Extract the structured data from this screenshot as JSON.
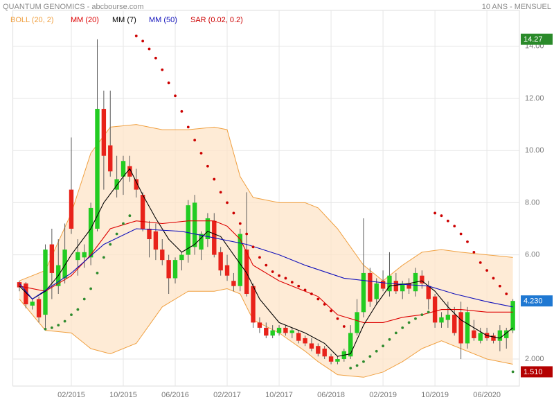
{
  "chart_data": {
    "type": "candlestick",
    "title": "QUANTUM GENOMICS - abcbourse.com",
    "subtitle": "10 ANS - MENSUEL",
    "xlim": [
      "05/2014",
      "11/2020"
    ],
    "xticks": [
      "02/2015",
      "10/2015",
      "06/2016",
      "02/2017",
      "10/2017",
      "06/2018",
      "02/2019",
      "10/2019",
      "06/2020"
    ],
    "ylim": [
      0.963,
      15.378
    ],
    "yticks": [
      {
        "value": 2,
        "label": "2.000"
      },
      {
        "value": 6,
        "label": "6.00"
      },
      {
        "value": 8,
        "label": "8.00"
      },
      {
        "value": 10,
        "label": "10.00"
      },
      {
        "value": 12,
        "label": "12.00"
      },
      {
        "value": 14,
        "label": "14.00"
      }
    ],
    "grid": true,
    "up_color": "#22cc22",
    "down_color": "#e8221a",
    "candles": {
      "x": [
        "06/2014",
        "07/2014",
        "08/2014",
        "09/2014",
        "10/2014",
        "11/2014",
        "12/2014",
        "01/2015",
        "02/2015",
        "03/2015",
        "04/2015",
        "05/2015",
        "06/2015",
        "07/2015",
        "08/2015",
        "09/2015",
        "10/2015",
        "11/2015",
        "12/2015",
        "01/2016",
        "02/2016",
        "03/2016",
        "04/2016",
        "05/2016",
        "06/2016",
        "07/2016",
        "08/2016",
        "09/2016",
        "10/2016",
        "11/2016",
        "12/2016",
        "01/2017",
        "02/2017",
        "03/2017",
        "04/2017",
        "05/2017",
        "06/2017",
        "07/2017",
        "08/2017",
        "09/2017",
        "10/2017",
        "11/2017",
        "12/2017",
        "01/2018",
        "02/2018",
        "03/2018",
        "04/2018",
        "05/2018",
        "06/2018",
        "07/2018",
        "08/2018",
        "09/2018",
        "10/2018",
        "11/2018",
        "12/2018",
        "01/2019",
        "02/2019",
        "03/2019",
        "04/2019",
        "05/2019",
        "06/2019",
        "07/2019",
        "08/2019",
        "09/2019",
        "10/2019",
        "11/2019",
        "12/2019",
        "01/2020",
        "02/2020",
        "03/2020",
        "04/2020",
        "05/2020",
        "06/2020",
        "07/2020",
        "08/2020",
        "09/2020",
        "10/2020"
      ],
      "open": [
        4.95,
        4.9,
        4.05,
        4.3,
        3.7,
        6.4,
        4.8,
        5.1,
        8.5,
        5.8,
        5.9,
        5.9,
        7.0,
        11.6,
        10.2,
        8.5,
        9.0,
        9.4,
        8.9,
        8.3,
        7.0,
        6.9,
        6.2,
        5.8,
        5.1,
        5.8,
        6.0,
        6.3,
        6.2,
        6.6,
        7.3,
        6.1,
        5.6,
        5.0,
        4.8,
        6.2,
        4.8,
        3.4,
        3.2,
        2.9,
        3.0,
        3.2,
        3.0,
        3.0,
        2.8,
        2.6,
        2.5,
        2.4,
        2.1,
        1.9,
        2.0,
        2.1,
        3.0,
        3.8,
        5.3,
        4.3,
        5.0,
        4.6,
        5.0,
        4.6,
        4.9,
        4.6,
        5.2,
        4.8,
        4.4,
        3.4,
        3.5,
        3.7,
        3.8,
        2.6,
        3.1,
        2.7,
        3.0,
        2.9,
        2.7,
        2.8,
        3.1
      ],
      "high": [
        5.0,
        4.95,
        4.3,
        4.4,
        6.4,
        7.0,
        6.6,
        7.2,
        10.5,
        6.6,
        6.4,
        8.0,
        14.27,
        12.3,
        12.3,
        9.8,
        9.8,
        9.8,
        9.3,
        8.4,
        7.3,
        7.2,
        6.6,
        6.0,
        5.9,
        6.1,
        8.1,
        8.3,
        6.9,
        7.6,
        7.6,
        6.3,
        6.0,
        5.3,
        7.0,
        8.4,
        4.9,
        3.6,
        3.4,
        3.3,
        3.3,
        3.3,
        3.2,
        3.1,
        2.9,
        2.8,
        2.6,
        2.5,
        2.2,
        2.1,
        2.4,
        3.3,
        4.3,
        7.4,
        5.5,
        5.1,
        5.4,
        6.1,
        5.3,
        5.0,
        5.1,
        5.5,
        5.4,
        5.0,
        4.5,
        3.8,
        4.2,
        4.0,
        4.2,
        4.0,
        3.5,
        3.2,
        3.2,
        3.0,
        3.3,
        3.2,
        4.3
      ],
      "low": [
        4.6,
        3.95,
        3.9,
        3.4,
        3.2,
        4.3,
        4.5,
        4.9,
        6.8,
        5.2,
        5.5,
        5.6,
        6.9,
        8.5,
        9.0,
        8.2,
        8.3,
        8.8,
        8.2,
        6.9,
        5.9,
        5.8,
        5.6,
        4.5,
        4.9,
        5.4,
        5.7,
        6.0,
        5.8,
        6.3,
        5.9,
        5.2,
        5.0,
        4.6,
        4.6,
        4.4,
        3.2,
        3.0,
        2.8,
        2.8,
        2.9,
        2.9,
        2.8,
        2.6,
        2.5,
        2.3,
        2.1,
        2.0,
        1.8,
        1.8,
        1.9,
        2.0,
        2.9,
        3.6,
        4.0,
        4.1,
        4.6,
        4.4,
        4.5,
        4.3,
        4.5,
        4.4,
        4.7,
        3.9,
        3.2,
        3.2,
        3.2,
        2.9,
        2.0,
        2.4,
        2.7,
        2.6,
        2.7,
        2.6,
        2.3,
        2.4,
        3.0
      ],
      "close": [
        4.75,
        4.1,
        4.2,
        3.6,
        6.2,
        5.3,
        5.6,
        6.2,
        7.0,
        6.1,
        6.1,
        7.8,
        11.6,
        9.8,
        9.2,
        8.9,
        9.6,
        9.0,
        8.5,
        7.0,
        6.6,
        6.2,
        5.8,
        5.1,
        5.8,
        6.0,
        7.9,
        8.0,
        6.8,
        7.4,
        6.0,
        5.4,
        5.2,
        4.8,
        6.8,
        4.5,
        3.4,
        3.2,
        2.9,
        3.1,
        3.2,
        3.0,
        3.1,
        2.7,
        2.6,
        2.4,
        2.2,
        2.1,
        1.9,
        2.0,
        2.3,
        3.0,
        3.8,
        5.3,
        4.2,
        4.9,
        4.7,
        5.2,
        4.6,
        4.9,
        4.7,
        5.3,
        4.9,
        4.3,
        3.4,
        3.6,
        3.7,
        3.0,
        2.6,
        3.8,
        2.8,
        3.0,
        2.8,
        2.7,
        3.1,
        3.1,
        4.23
      ]
    },
    "bollinger": {
      "name": "BOLL (20, 2)",
      "color": "#f0a040",
      "fill": "#fde4c8",
      "x": [
        "06/2014",
        "10/2014",
        "02/2015",
        "05/2015",
        "08/2015",
        "12/2015",
        "04/2016",
        "08/2016",
        "12/2016",
        "02/2017",
        "04/2017",
        "06/2017",
        "10/2017",
        "02/2018",
        "04/2018",
        "07/2018",
        "11/2018",
        "02/2019",
        "05/2019",
        "08/2019",
        "11/2019",
        "02/2020",
        "06/2020",
        "10/2020"
      ],
      "upper": [
        5.0,
        5.4,
        7.6,
        9.9,
        10.9,
        11.0,
        10.8,
        10.8,
        10.9,
        10.8,
        9.0,
        8.2,
        8.0,
        8.0,
        7.8,
        7.0,
        5.6,
        5.0,
        5.6,
        6.1,
        6.2,
        6.1,
        6.0,
        5.9
      ],
      "lower": [
        4.3,
        3.1,
        3.0,
        2.4,
        2.2,
        2.6,
        4.0,
        4.6,
        4.6,
        4.7,
        4.5,
        3.5,
        3.0,
        2.3,
        1.9,
        1.4,
        1.3,
        1.5,
        1.9,
        2.4,
        2.7,
        2.4,
        2.0,
        1.8
      ]
    },
    "series": [
      {
        "name": "MM (20)",
        "color": "#dd0000",
        "x": [
          "06/2014",
          "10/2014",
          "02/2015",
          "05/2015",
          "08/2015",
          "12/2015",
          "04/2016",
          "08/2016",
          "12/2016",
          "02/2017",
          "04/2017",
          "06/2017",
          "10/2017",
          "02/2018",
          "04/2018",
          "07/2018",
          "11/2018",
          "02/2019",
          "05/2019",
          "08/2019",
          "11/2019",
          "02/2020",
          "06/2020",
          "10/2020"
        ],
        "values": [
          4.8,
          4.6,
          5.2,
          6.0,
          7.0,
          7.3,
          7.2,
          7.3,
          7.3,
          7.1,
          6.6,
          5.6,
          5.0,
          4.6,
          4.4,
          3.7,
          3.4,
          3.4,
          3.6,
          3.7,
          3.9,
          3.9,
          3.8,
          3.8
        ]
      },
      {
        "name": "MM (7)",
        "color": "#000000",
        "x": [
          "06/2014",
          "08/2014",
          "10/2014",
          "12/2014",
          "02/2015",
          "05/2015",
          "07/2015",
          "10/2015",
          "11/2015",
          "01/2016",
          "03/2016",
          "05/2016",
          "07/2016",
          "09/2016",
          "11/2016",
          "01/2017",
          "03/2017",
          "05/2017",
          "07/2017",
          "10/2017",
          "02/2018",
          "05/2018",
          "07/2018",
          "09/2018",
          "11/2018",
          "01/2019",
          "03/2019",
          "06/2019",
          "08/2019",
          "10/2019",
          "12/2019",
          "02/2020",
          "04/2020",
          "06/2020",
          "08/2020",
          "10/2020"
        ],
        "values": [
          4.8,
          4.3,
          4.6,
          5.2,
          6.0,
          7.0,
          8.0,
          9.0,
          9.3,
          8.3,
          7.4,
          6.6,
          6.1,
          6.4,
          6.9,
          6.7,
          6.0,
          5.3,
          4.3,
          3.4,
          3.0,
          2.6,
          2.1,
          2.2,
          3.3,
          4.1,
          4.8,
          4.9,
          5.0,
          4.6,
          4.0,
          3.5,
          3.2,
          2.9,
          2.8,
          3.2
        ]
      },
      {
        "name": "MM (50)",
        "color": "#1010bb",
        "x": [
          "06/2014",
          "08/2014",
          "02/2015",
          "07/2015",
          "12/2015",
          "07/2016",
          "11/2016",
          "05/2017",
          "10/2017",
          "02/2018",
          "08/2018",
          "03/2019",
          "09/2019",
          "01/2020",
          "06/2020",
          "10/2020"
        ],
        "values": [
          4.9,
          4.3,
          5.3,
          6.4,
          7.0,
          6.9,
          6.7,
          6.4,
          6.0,
          5.6,
          5.1,
          4.9,
          4.8,
          4.5,
          4.2,
          4.0
        ]
      }
    ],
    "sar": {
      "name": "SAR (0.02, 0.2)",
      "color": "#cc0000",
      "color_below": "#2e8b2e",
      "values": [
        null,
        null,
        null,
        null,
        3.15,
        3.2,
        3.3,
        3.45,
        3.7,
        3.9,
        4.3,
        4.7,
        5.3,
        5.9,
        6.4,
        6.8,
        7.2,
        7.5,
        14.4,
        14.2,
        13.9,
        13.55,
        13.1,
        12.6,
        12.1,
        11.5,
        10.9,
        10.4,
        9.9,
        9.4,
        8.9,
        8.4,
        8.0,
        7.6,
        7.2,
        6.8,
        6.3,
        5.9,
        5.6,
        5.35,
        5.2,
        5.1,
        4.95,
        4.8,
        4.65,
        4.5,
        4.3,
        4.1,
        3.85,
        3.55,
        3.25,
        1.65,
        1.75,
        1.9,
        2.1,
        2.3,
        2.5,
        2.75,
        3.0,
        3.2,
        3.4,
        3.55,
        3.7,
        3.8,
        7.6,
        7.5,
        7.3,
        7.1,
        6.8,
        6.5,
        6.1,
        5.7,
        5.4,
        5.1,
        4.8,
        4.5,
        1.51
      ]
    },
    "price_labels": [
      {
        "value": 14.27,
        "label": "14.27",
        "color": "#2a8a2a"
      },
      {
        "value": 4.23,
        "label": "4.230",
        "color": "#1f78d2"
      },
      {
        "value": 1.51,
        "label": "1.510",
        "color": "#b40000"
      }
    ]
  }
}
